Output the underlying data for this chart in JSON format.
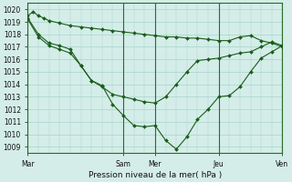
{
  "xlabel": "Pression niveau de la mer( hPa )",
  "background_color": "#d4ede8",
  "grid_color": "#a8d4cc",
  "line_color": "#1a5c1a",
  "ylim": [
    1008.5,
    1020.5
  ],
  "yticks": [
    1009,
    1010,
    1011,
    1012,
    1013,
    1014,
    1015,
    1016,
    1017,
    1018,
    1019,
    1020
  ],
  "day_labels": [
    "Mar",
    "Sam",
    "Mer",
    "Jeu",
    "Ven"
  ],
  "day_x": [
    0,
    9,
    12,
    18,
    24
  ],
  "xlim": [
    0,
    25
  ],
  "line1_x": [
    0,
    0.5,
    1,
    1.5,
    2,
    3,
    4,
    5,
    6,
    7,
    8,
    9,
    10,
    11,
    12,
    13,
    14,
    15,
    16,
    17,
    18,
    19,
    20,
    21,
    22,
    23,
    24
  ],
  "line1_y": [
    1019.5,
    1019.8,
    1019.5,
    1019.3,
    1019.1,
    1018.9,
    1018.7,
    1018.6,
    1018.5,
    1018.4,
    1018.3,
    1018.2,
    1018.1,
    1018.0,
    1017.9,
    1017.8,
    1017.8,
    1017.7,
    1017.7,
    1017.6,
    1017.5,
    1017.5,
    1017.8,
    1017.9,
    1017.5,
    1017.3,
    1017.0
  ],
  "line2_x": [
    0,
    1,
    2,
    3,
    4,
    5,
    6,
    7,
    8,
    9,
    10,
    11,
    12,
    13,
    14,
    15,
    16,
    17,
    18,
    19,
    20,
    21,
    22,
    23,
    24
  ],
  "line2_y": [
    1019.3,
    1018.0,
    1017.3,
    1017.1,
    1016.8,
    1015.5,
    1014.3,
    1013.9,
    1012.4,
    1011.5,
    1010.7,
    1010.6,
    1010.7,
    1009.5,
    1008.8,
    1009.8,
    1011.2,
    1012.0,
    1013.0,
    1013.1,
    1013.8,
    1015.0,
    1016.1,
    1016.6,
    1017.1
  ],
  "line3_x": [
    0,
    1,
    2,
    3,
    4,
    5,
    6,
    7,
    8,
    9,
    10,
    11,
    12,
    13,
    14,
    15,
    16,
    17,
    18,
    19,
    20,
    21,
    22,
    23,
    24
  ],
  "line3_y": [
    1019.2,
    1017.8,
    1017.1,
    1016.8,
    1016.5,
    1015.5,
    1014.3,
    1013.8,
    1013.2,
    1013.0,
    1012.8,
    1012.6,
    1012.5,
    1013.0,
    1014.0,
    1015.0,
    1015.9,
    1016.0,
    1016.1,
    1016.3,
    1016.5,
    1016.6,
    1017.0,
    1017.4,
    1017.1
  ]
}
